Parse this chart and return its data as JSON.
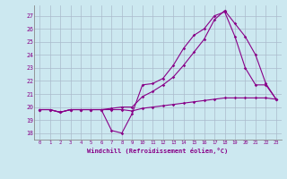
{
  "xlabel": "Windchill (Refroidissement éolien,°C)",
  "bg_color": "#cce8f0",
  "line_color": "#880088",
  "grid_color": "#aabbcc",
  "xlim": [
    -0.5,
    23.5
  ],
  "ylim": [
    17.5,
    27.8
  ],
  "yticks": [
    18,
    19,
    20,
    21,
    22,
    23,
    24,
    25,
    26,
    27
  ],
  "xticks": [
    0,
    1,
    2,
    3,
    4,
    5,
    6,
    7,
    8,
    9,
    10,
    11,
    12,
    13,
    14,
    15,
    16,
    17,
    18,
    19,
    20,
    21,
    22,
    23
  ],
  "series1_x": [
    0,
    1,
    2,
    3,
    4,
    5,
    6,
    7,
    8,
    9,
    10,
    11,
    12,
    13,
    14,
    15,
    16,
    17,
    18,
    19,
    20,
    21,
    22,
    23
  ],
  "series1_y": [
    19.8,
    19.8,
    19.6,
    19.8,
    19.8,
    19.8,
    19.8,
    19.8,
    19.8,
    19.7,
    19.9,
    20.0,
    20.1,
    20.2,
    20.3,
    20.4,
    20.5,
    20.6,
    20.7,
    20.7,
    20.7,
    20.7,
    20.7,
    20.6
  ],
  "series2_x": [
    0,
    1,
    2,
    3,
    4,
    5,
    6,
    7,
    8,
    9,
    10,
    11,
    12,
    13,
    14,
    15,
    16,
    17,
    18,
    19,
    20,
    21,
    22,
    23
  ],
  "series2_y": [
    19.8,
    19.8,
    19.6,
    19.8,
    19.8,
    19.8,
    19.8,
    18.2,
    18.0,
    19.5,
    21.7,
    21.8,
    22.2,
    23.2,
    24.5,
    25.5,
    26.0,
    27.0,
    27.3,
    25.4,
    23.0,
    21.7,
    21.7,
    20.6
  ],
  "series3_x": [
    0,
    1,
    2,
    3,
    4,
    5,
    6,
    7,
    8,
    9,
    10,
    11,
    12,
    13,
    14,
    15,
    16,
    17,
    18,
    19,
    20,
    21,
    22,
    23
  ],
  "series3_y": [
    19.8,
    19.8,
    19.6,
    19.8,
    19.8,
    19.8,
    19.8,
    19.9,
    20.0,
    20.0,
    20.8,
    21.2,
    21.7,
    22.3,
    23.2,
    24.2,
    25.2,
    26.7,
    27.4,
    26.4,
    25.4,
    24.0,
    21.8,
    20.6
  ]
}
